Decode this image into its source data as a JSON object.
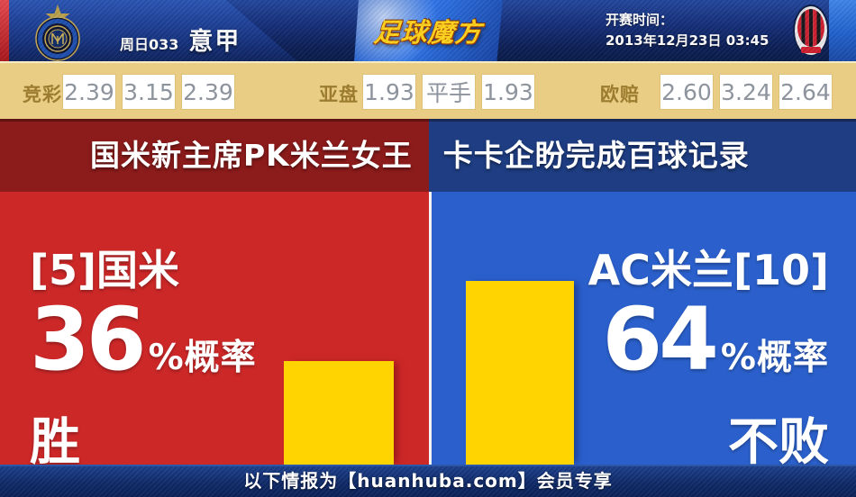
{
  "header": {
    "round_label": "周日033",
    "league": "意甲",
    "brand_logo": "足球魔方",
    "kickoff_label": "开赛时间：",
    "kickoff_datetime": "2013年12月23日 03:45"
  },
  "odds_bar": {
    "groups": [
      {
        "label": "竞彩",
        "values": [
          "2.39",
          "3.15",
          "2.39"
        ]
      },
      {
        "label": "亚盘",
        "values": [
          "1.93",
          "平手",
          "1.93"
        ]
      },
      {
        "label": "欧赔",
        "values": [
          "2.60",
          "3.24",
          "2.64"
        ]
      }
    ]
  },
  "headline": "国米新主席PK米兰女王　卡卡企盼完成百球记录",
  "prediction": {
    "home": {
      "team": "[5]国米",
      "percent": "36",
      "suffix": "%概率",
      "outcome": "胜"
    },
    "away": {
      "team": "AC米兰[10]",
      "percent": "64",
      "suffix": "%概率",
      "outcome": "不败"
    }
  },
  "footer": {
    "notice": "以下情报为【huanhuba.com】会员专享"
  },
  "colors": {
    "home_red": "#cd2828",
    "away_blue": "#2b60cc",
    "bar_yellow": "#ffd400",
    "headline_red": "#8c1b1b",
    "headline_blue": "#1e3d82",
    "odds_bg": "#e9cd84",
    "brand_gold": "#ffd21c",
    "footer_navy": "#0e2a66"
  },
  "chart_data": {
    "type": "bar",
    "categories": [
      "[5]国米 胜",
      "AC米兰[10] 不败"
    ],
    "values": [
      36,
      64
    ],
    "unit": "%",
    "title": "",
    "xlabel": "",
    "ylabel": "",
    "ylim": [
      0,
      100
    ],
    "bar_color": "#ffd400",
    "grid": false,
    "legend_position": "none"
  }
}
